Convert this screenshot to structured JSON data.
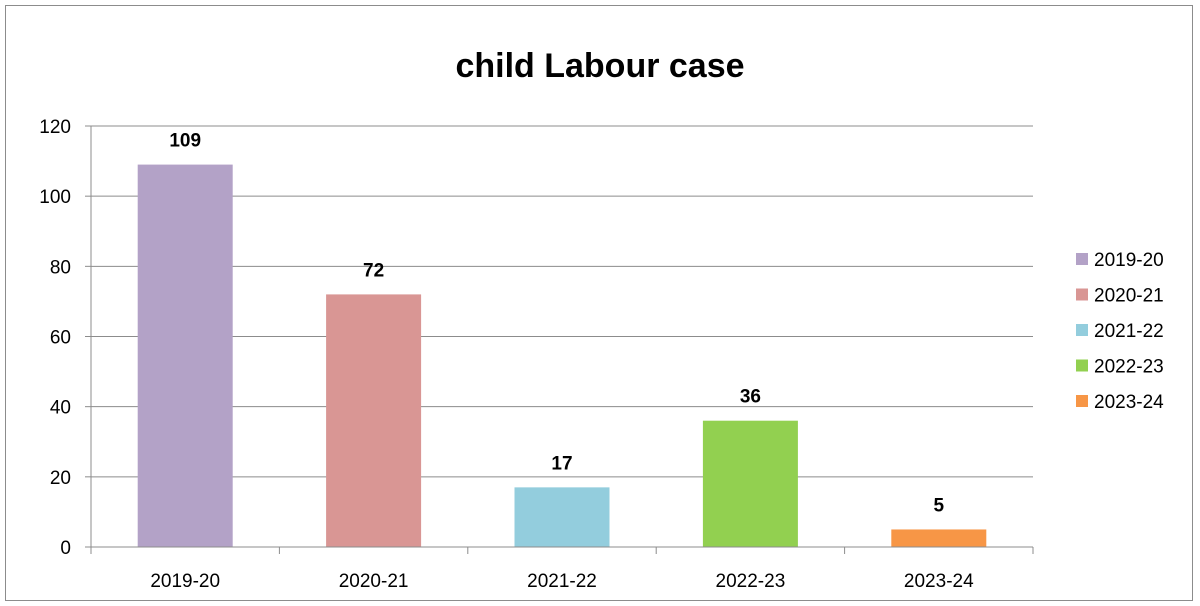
{
  "chart_data": {
    "type": "bar",
    "title": "child Labour case",
    "categories": [
      "2019-20",
      "2020-21",
      "2021-22",
      "2022-23",
      "2023-24"
    ],
    "values": [
      109,
      72,
      17,
      36,
      5
    ],
    "colors": [
      "#b3a2c7",
      "#d99694",
      "#93cddd",
      "#92d050",
      "#f79646"
    ],
    "xlabel": "",
    "ylabel": "",
    "ylim": [
      0,
      120
    ],
    "yticks": [
      0,
      20,
      40,
      60,
      80,
      100,
      120
    ],
    "grid": true,
    "data_labels": true,
    "legend": {
      "placement": "right",
      "entries": [
        "2019-20",
        "2020-21",
        "2021-22",
        "2022-23",
        "2023-24"
      ]
    }
  }
}
